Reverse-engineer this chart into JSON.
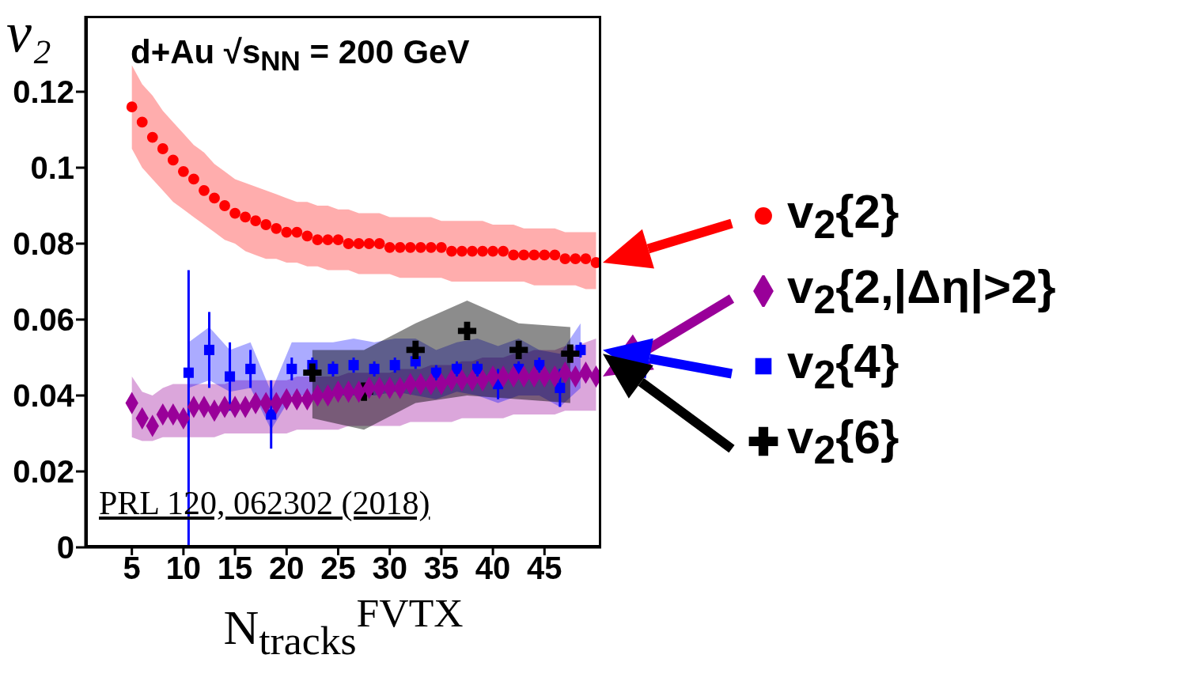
{
  "chart_data": {
    "type": "scatter",
    "title": "d+Au √s$_{NN}$ = 200 GeV",
    "xlabel": "N$_{tracks}$$^{FVTX}$",
    "ylabel": "v₂",
    "annotations": [
      "PRL 120, 062302 (2018)"
    ],
    "xlim": [
      0.5,
      50.5
    ],
    "xticks": [
      5,
      10,
      15,
      20,
      25,
      30,
      35,
      40,
      45
    ],
    "ylim": [
      0,
      0.14
    ],
    "yticks": [
      0,
      0.02,
      0.04,
      0.06,
      0.08,
      0.1,
      0.12
    ],
    "grid": false,
    "legend": "right",
    "series": [
      {
        "name": "v$_{2}${2}",
        "marker": "circle",
        "color": "#ff0000",
        "x": [
          5,
          6,
          7,
          8,
          9,
          10,
          11,
          12,
          13,
          14,
          15,
          16,
          17,
          18,
          19,
          20,
          21,
          22,
          23,
          24,
          25,
          26,
          27,
          28,
          29,
          30,
          31,
          32,
          33,
          34,
          35,
          36,
          37,
          38,
          39,
          40,
          41,
          42,
          43,
          44,
          45,
          46,
          47,
          48,
          49,
          50
        ],
        "values": [
          0.116,
          0.112,
          0.108,
          0.105,
          0.102,
          0.099,
          0.097,
          0.094,
          0.092,
          0.09,
          0.088,
          0.087,
          0.086,
          0.085,
          0.084,
          0.083,
          0.083,
          0.082,
          0.081,
          0.081,
          0.081,
          0.08,
          0.08,
          0.08,
          0.08,
          0.079,
          0.079,
          0.079,
          0.079,
          0.079,
          0.079,
          0.078,
          0.078,
          0.078,
          0.078,
          0.078,
          0.078,
          0.077,
          0.077,
          0.077,
          0.077,
          0.077,
          0.076,
          0.076,
          0.076,
          0.075
        ],
        "upper": [
          0.127,
          0.122,
          0.119,
          0.115,
          0.112,
          0.109,
          0.106,
          0.104,
          0.101,
          0.099,
          0.097,
          0.096,
          0.095,
          0.094,
          0.093,
          0.092,
          0.091,
          0.091,
          0.09,
          0.09,
          0.089,
          0.089,
          0.088,
          0.088,
          0.088,
          0.087,
          0.087,
          0.087,
          0.087,
          0.087,
          0.086,
          0.086,
          0.086,
          0.086,
          0.086,
          0.085,
          0.085,
          0.085,
          0.084,
          0.084,
          0.084,
          0.084,
          0.083,
          0.083,
          0.083,
          0.083
        ],
        "lower": [
          0.105,
          0.1,
          0.097,
          0.094,
          0.091,
          0.089,
          0.087,
          0.085,
          0.083,
          0.081,
          0.08,
          0.078,
          0.077,
          0.076,
          0.076,
          0.075,
          0.075,
          0.074,
          0.074,
          0.073,
          0.073,
          0.073,
          0.072,
          0.072,
          0.072,
          0.072,
          0.071,
          0.071,
          0.071,
          0.071,
          0.071,
          0.07,
          0.07,
          0.07,
          0.07,
          0.07,
          0.07,
          0.07,
          0.07,
          0.069,
          0.069,
          0.069,
          0.069,
          0.069,
          0.068,
          0.068
        ]
      },
      {
        "name": "v$_{2}${2,|Δη|>2}",
        "marker": "diamond",
        "color": "#990099",
        "x": [
          5,
          6,
          7,
          8,
          9,
          10,
          11,
          12,
          13,
          14,
          15,
          16,
          17,
          18,
          19,
          20,
          21,
          22,
          23,
          24,
          25,
          26,
          27,
          28,
          29,
          30,
          31,
          32,
          33,
          34,
          35,
          36,
          37,
          38,
          39,
          40,
          41,
          42,
          43,
          44,
          45,
          46,
          47,
          48,
          49,
          50
        ],
        "values": [
          0.038,
          0.034,
          0.032,
          0.035,
          0.035,
          0.034,
          0.037,
          0.037,
          0.036,
          0.037,
          0.037,
          0.037,
          0.038,
          0.038,
          0.038,
          0.039,
          0.039,
          0.039,
          0.04,
          0.04,
          0.041,
          0.041,
          0.041,
          0.042,
          0.042,
          0.042,
          0.042,
          0.043,
          0.043,
          0.043,
          0.043,
          0.044,
          0.044,
          0.044,
          0.044,
          0.045,
          0.045,
          0.045,
          0.045,
          0.045,
          0.045,
          0.045,
          0.046,
          0.045,
          0.046,
          0.045
        ],
        "upper": [
          0.045,
          0.041,
          0.04,
          0.042,
          0.043,
          0.043,
          0.043,
          0.043,
          0.043,
          0.043,
          0.044,
          0.044,
          0.044,
          0.044,
          0.044,
          0.044,
          0.045,
          0.045,
          0.045,
          0.045,
          0.045,
          0.046,
          0.046,
          0.046,
          0.046,
          0.046,
          0.047,
          0.047,
          0.047,
          0.048,
          0.048,
          0.048,
          0.049,
          0.049,
          0.05,
          0.05,
          0.05,
          0.051,
          0.051,
          0.052,
          0.052,
          0.052,
          0.053,
          0.053,
          0.054,
          0.055
        ],
        "lower": [
          0.029,
          0.028,
          0.028,
          0.029,
          0.029,
          0.029,
          0.029,
          0.029,
          0.029,
          0.03,
          0.03,
          0.03,
          0.03,
          0.03,
          0.03,
          0.03,
          0.031,
          0.031,
          0.031,
          0.031,
          0.031,
          0.032,
          0.032,
          0.032,
          0.032,
          0.032,
          0.032,
          0.033,
          0.033,
          0.033,
          0.033,
          0.033,
          0.034,
          0.034,
          0.034,
          0.034,
          0.034,
          0.035,
          0.035,
          0.035,
          0.035,
          0.035,
          0.036,
          0.036,
          0.036,
          0.036
        ]
      },
      {
        "name": "v$_{2}${4}",
        "marker": "square",
        "color": "#0000ff",
        "x": [
          10.5,
          12.5,
          14.5,
          16.5,
          18.5,
          20.5,
          22.5,
          24.5,
          26.5,
          28.5,
          30.5,
          32.5,
          34.5,
          36.5,
          38.5,
          40.5,
          42.5,
          44.5,
          46.5,
          48.5
        ],
        "values": [
          0.046,
          0.052,
          0.045,
          0.047,
          0.035,
          0.047,
          0.048,
          0.047,
          0.048,
          0.047,
          0.048,
          0.049,
          0.046,
          0.047,
          0.047,
          0.043,
          0.047,
          0.048,
          0.042,
          0.052
        ],
        "errors": [
          [
            0,
            0.073
          ],
          0.01,
          0.009,
          0.005,
          0.009,
          0.003,
          0.002,
          0.002,
          0.002,
          0.002,
          0.002,
          0.002,
          0.002,
          0.002,
          0.002,
          0.004,
          0.002,
          0.002,
          0.005,
          0.002
        ],
        "upper": [
          0.054,
          0.058,
          0.052,
          0.054,
          0.041,
          0.054,
          0.054,
          0.054,
          0.055,
          0.054,
          0.055,
          0.055,
          0.052,
          0.054,
          0.055,
          0.053,
          0.055,
          0.052,
          0.051,
          0.059
        ],
        "lower": [
          0.042,
          0.044,
          0.041,
          0.042,
          0.031,
          0.04,
          0.04,
          0.04,
          0.04,
          0.04,
          0.041,
          0.04,
          0.039,
          0.041,
          0.04,
          0.038,
          0.04,
          0.04,
          0.037,
          0.042
        ]
      },
      {
        "name": "v$_{2}${6}",
        "marker": "cross",
        "color": "#000000",
        "x": [
          22.5,
          27.5,
          32.5,
          37.5,
          42.5,
          47.5
        ],
        "values": [
          0.046,
          0.041,
          0.052,
          0.057,
          0.052,
          0.051
        ],
        "upper": [
          0.052,
          0.052,
          0.059,
          0.065,
          0.059,
          0.058
        ],
        "lower": [
          0.034,
          0.031,
          0.038,
          0.04,
          0.039,
          0.038
        ]
      }
    ]
  }
}
